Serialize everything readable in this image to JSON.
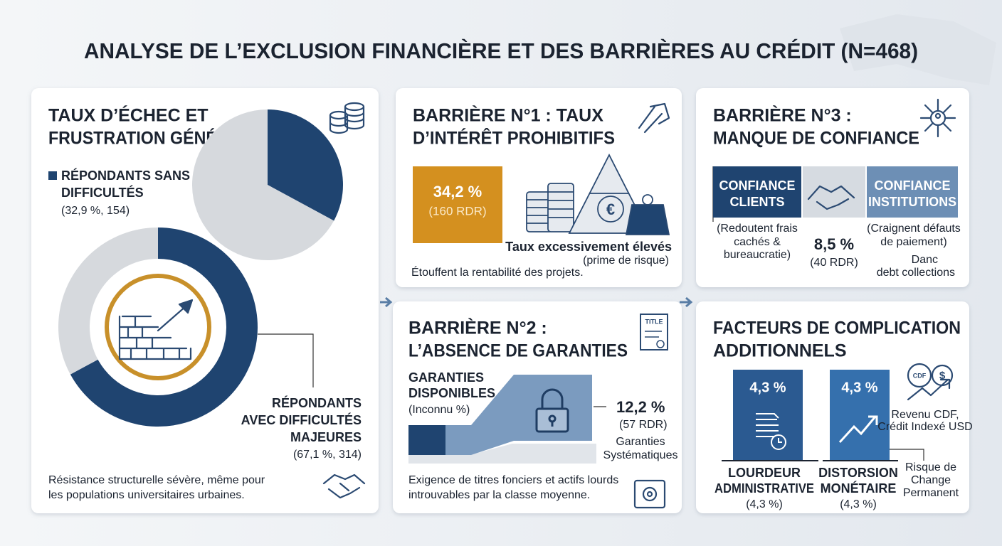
{
  "header": {
    "title": "ANALYSE DE L’EXCLUSION FINANCIÈRE ET DES BARRIÈRES AU CRÉDIT (N=468)"
  },
  "failure": {
    "title_lines": [
      "TAUX D’ÉCHEC ET",
      "FRUSTRATION GÉNÉRALE"
    ],
    "legend_top": {
      "label_lines": [
        "RÉPONDANTS SANS",
        "DIFFICULTÉS"
      ],
      "detail": "(32,9 %, 154)",
      "value": 32.9
    },
    "legend_bottom": {
      "label_lines": [
        "RÉPONDANTS",
        "AVEC DIFFICULTÉS",
        "MAJEURES"
      ],
      "detail": "(67,1 %, 314)",
      "value": 67.1
    },
    "note_lines": [
      "Résistance structurelle sévère, même pour",
      "les populations universitaires urbaines."
    ]
  },
  "barrier1": {
    "title_lines": [
      "BARRIÈRE N°1 : TAUX",
      "D’INTÉRÊT PROHIBITIFS"
    ],
    "stat": "34,2 %",
    "stat_detail": "(160 RDR)",
    "caption_lines": [
      "Taux excessivement élevés",
      "(prime de risque)"
    ],
    "note": "Étouffent la rentabilité des projets."
  },
  "barrier3": {
    "title_lines": [
      "BARRIÈRE N°3 :",
      "MANQUE DE CONFIANCE"
    ],
    "left_box_lines": [
      "CONFIANCE",
      "CLIENTS"
    ],
    "right_box_lines": [
      "CONFIANCE",
      "INSTITUTIONS"
    ],
    "left_note_lines": [
      "(Redoutent frais",
      "cachés &",
      "bureaucratie)"
    ],
    "stat": "8,5 %",
    "stat_detail": "(40 RDR)",
    "right_note_lines": [
      "(Craignent défauts",
      "de paiement)"
    ],
    "extra_lines": [
      "Danc",
      "debt collections"
    ]
  },
  "barrier2": {
    "title_lines": [
      "BARRIÈRE N°2 :",
      "L’ABSENCE DE GARANTIES"
    ],
    "icon_label": "TITLE",
    "available_lines": [
      "GARANTIES",
      "DISPONIBLES"
    ],
    "available_detail": "(Inconnu %)",
    "stat": "12,2 %",
    "stat_detail": "(57 RDR)",
    "stat_caption_lines": [
      "Garanties",
      "Systématiques"
    ],
    "note_lines": [
      "Exigence de titres fonciers et actifs lourds",
      "introuvables par la classe moyenne."
    ]
  },
  "factors": {
    "title_lines": [
      "FACTEURS DE COMPLICATION",
      "ADDITIONNELS"
    ],
    "items": [
      {
        "stat": "4,3 %",
        "label_lines": [
          "LOURDEUR",
          "ADMINISTRATIVE"
        ],
        "detail": "(4,3 %)"
      },
      {
        "stat": "4,3 %",
        "label_lines": [
          "DISTORSION",
          "MONÉTAIRE"
        ],
        "detail": "(4,3 %)"
      }
    ],
    "icon_label": "CDF",
    "currency_lines": [
      "Revenu CDF,",
      "Crédit Indexé USD"
    ],
    "risk_lines": [
      "Risque de",
      "Change",
      "Permanent"
    ]
  }
}
